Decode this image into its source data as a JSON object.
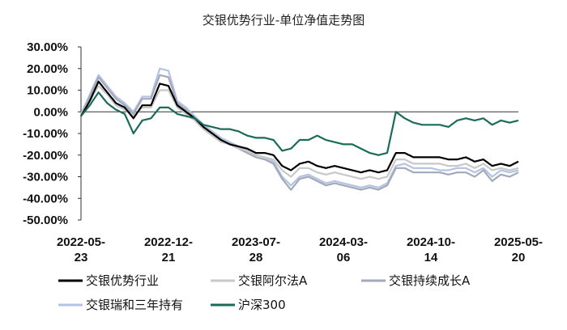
{
  "chart_data": {
    "type": "line",
    "title": "交银优势行业-单位净值走势图",
    "ylim": [
      -50,
      30
    ],
    "yticks": [
      "30.00%",
      "20.00%",
      "10.00%",
      "0.00%",
      "-10.00%",
      "-20.00%",
      "-30.00%",
      "-40.00%",
      "-50.00%"
    ],
    "ytick_values": [
      30,
      20,
      10,
      0,
      -10,
      -20,
      -30,
      -40,
      -50
    ],
    "xtick_labels": [
      {
        "line1": "2022-05-",
        "line2": "23"
      },
      {
        "line1": "2022-12-",
        "line2": "21"
      },
      {
        "line1": "2023-07-",
        "line2": "28"
      },
      {
        "line1": "2024-03-",
        "line2": "06"
      },
      {
        "line1": "2024-10-",
        "line2": "14"
      },
      {
        "line1": "2025-05-",
        "line2": "20"
      }
    ],
    "x": [
      0,
      0.1,
      0.2,
      0.3,
      0.4,
      0.5,
      0.6,
      0.7,
      0.8,
      0.9,
      1.0,
      1.1,
      1.2,
      1.3,
      1.4,
      1.5,
      1.6,
      1.7,
      1.8,
      1.9,
      2.0,
      2.1,
      2.2,
      2.3,
      2.4,
      2.5,
      2.6,
      2.7,
      2.8,
      2.9,
      3.0,
      3.1,
      3.2,
      3.3,
      3.4,
      3.5,
      3.6,
      3.7,
      3.8,
      3.9,
      4.0,
      4.1,
      4.2,
      4.3,
      4.4,
      4.5,
      4.6,
      4.7,
      4.8,
      4.9,
      5.0
    ],
    "series": [
      {
        "name": "交银优势行业",
        "color": "#000000",
        "width": 2.2,
        "values": [
          -2,
          5,
          14,
          9,
          4,
          2,
          -3,
          3,
          3,
          13,
          12,
          3,
          0,
          -3,
          -7,
          -10,
          -13,
          -15,
          -16,
          -17,
          -19,
          -19,
          -20,
          -25,
          -27,
          -24,
          -23,
          -25,
          -26,
          -25,
          -26,
          -27,
          -28,
          -27,
          -28,
          -27,
          -19,
          -19,
          -21,
          -21,
          -21,
          -21,
          -22,
          -22,
          -21,
          -23,
          -22,
          -25,
          -24,
          -25,
          -23
        ]
      },
      {
        "name": "交银阿尔法A",
        "color": "#c8c8c8",
        "width": 2.2,
        "values": [
          -1,
          5,
          12,
          8,
          3,
          1,
          -2,
          2,
          2,
          10,
          10,
          2,
          -1,
          -4,
          -8,
          -11,
          -14,
          -15,
          -17,
          -18,
          -20,
          -21,
          -22,
          -27,
          -30,
          -26,
          -26,
          -28,
          -29,
          -28,
          -29,
          -30,
          -31,
          -30,
          -31,
          -30,
          -22,
          -22,
          -24,
          -24,
          -24,
          -24,
          -25,
          -25,
          -24,
          -26,
          -24,
          -27,
          -26,
          -27,
          -26
        ]
      },
      {
        "name": "交银持续成长A",
        "color": "#a3a9b8",
        "width": 2.2,
        "values": [
          -2,
          7,
          16,
          11,
          6,
          3,
          -1,
          6,
          6,
          17,
          16,
          4,
          1,
          -3,
          -7,
          -10,
          -13,
          -15,
          -17,
          -19,
          -21,
          -22,
          -24,
          -31,
          -36,
          -31,
          -30,
          -32,
          -34,
          -33,
          -34,
          -35,
          -36,
          -35,
          -36,
          -34,
          -26,
          -26,
          -28,
          -28,
          -28,
          -28,
          -29,
          -28,
          -28,
          -30,
          -27,
          -32,
          -29,
          -30,
          -28
        ]
      },
      {
        "name": "交银瑞和三年持有",
        "color": "#b3c3e6",
        "width": 2.2,
        "values": [
          -1,
          8,
          17,
          12,
          7,
          4,
          0,
          7,
          7,
          20,
          19,
          5,
          2,
          -2,
          -6,
          -9,
          -12,
          -14,
          -16,
          -18,
          -20,
          -21,
          -23,
          -30,
          -34,
          -30,
          -29,
          -31,
          -33,
          -32,
          -33,
          -34,
          -35,
          -34,
          -35,
          -33,
          -25,
          -24,
          -26,
          -26,
          -26,
          -27,
          -27,
          -26,
          -26,
          -28,
          -26,
          -30,
          -27,
          -28,
          -27
        ]
      },
      {
        "name": "沪深300",
        "color": "#1a6b5a",
        "width": 2.2,
        "values": [
          -2,
          3,
          9,
          4,
          1,
          -1,
          -10,
          -4,
          -3,
          2,
          2,
          -1,
          -2,
          -3,
          -6,
          -7,
          -8,
          -8,
          -9,
          -11,
          -12,
          -12,
          -13,
          -18,
          -17,
          -13,
          -13,
          -11,
          -13,
          -14,
          -15,
          -15,
          -17,
          -19,
          -20,
          -19,
          0,
          -3,
          -5,
          -6,
          -6,
          -6,
          -7,
          -4,
          -3,
          -4,
          -3,
          -6,
          -4,
          -5,
          -4
        ]
      }
    ],
    "legend": [
      {
        "label": "交银优势行业",
        "color": "#000000"
      },
      {
        "label": "交银阿尔法A",
        "color": "#c8c8c8"
      },
      {
        "label": "交银持续成长A",
        "color": "#a3a9b8"
      },
      {
        "label": "交银瑞和三年持有",
        "color": "#b3c3e6"
      },
      {
        "label": "沪深300",
        "color": "#1a6b5a"
      }
    ]
  }
}
